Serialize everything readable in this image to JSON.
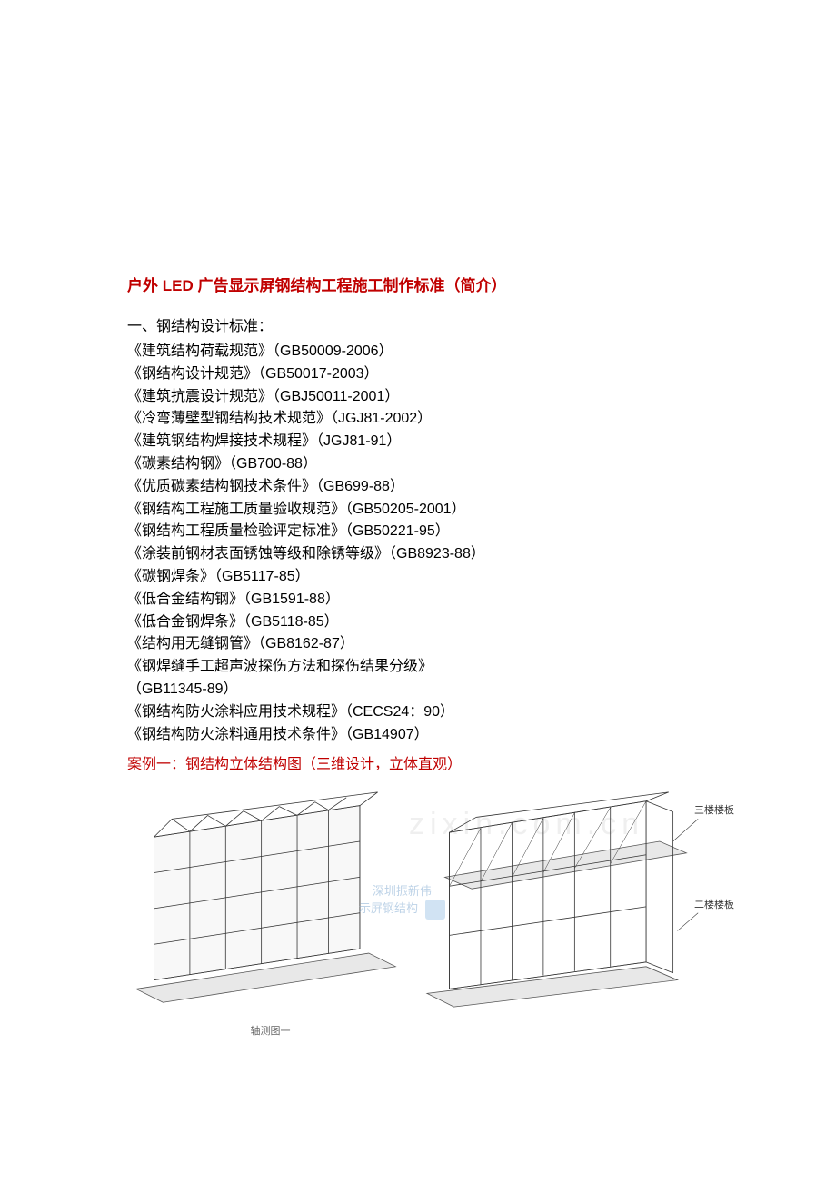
{
  "title": "户外 LED 广告显示屏钢结构工程施工制作标准（简介）",
  "section_header": "一、钢结构设计标准：",
  "standards": [
    "《建筑结构荷载规范》（GB50009-2006）",
    "《钢结构设计规范》（GB50017-2003）",
    "《建筑抗震设计规范》（GBJ50011-2001）",
    "《冷弯薄壁型钢结构技术规范》（JGJ81-2002）",
    "《建筑钢结构焊接技术规程》（JGJ81-91）",
    "《碳素结构钢》（GB700-88）",
    "《优质碳素结构钢技术条件》（GB699-88）",
    "《钢结构工程施工质量验收规范》（GB50205-2001）",
    "《钢结构工程质量检验评定标准》（GB50221-95）",
    "《涂装前钢材表面锈蚀等级和除锈等级》（GB8923-88）",
    "《碳钢焊条》（GB5117-85）",
    "《低合金结构钢》（GB1591-88）",
    "《低合金钢焊条》（GB5118-85）",
    "《结构用无缝钢管》（GB8162-87）",
    "《钢焊缝手工超声波探伤方法和探伤结果分级》",
    "（GB11345-89）",
    "《钢结构防火涂料应用技术规程》（CECS24：90）",
    "《钢结构防火涂料通用技术条件》（GB14907）"
  ],
  "case_title": "案例一：钢结构立体结构图（三维设计，立体直观）",
  "watermark_text": "zixin.com.cn",
  "diagram": {
    "left_caption": "轴测图一",
    "right_labels": [
      "三楼楼板",
      "二楼楼板"
    ],
    "center_watermark_line1": "深圳振新伟",
    "center_watermark_line2": "示屏钢结构",
    "stroke_color": "#333333",
    "stroke_width": 0.7,
    "fill_color": "#f5f5f5",
    "floor_fill": "#e8e8e8"
  }
}
